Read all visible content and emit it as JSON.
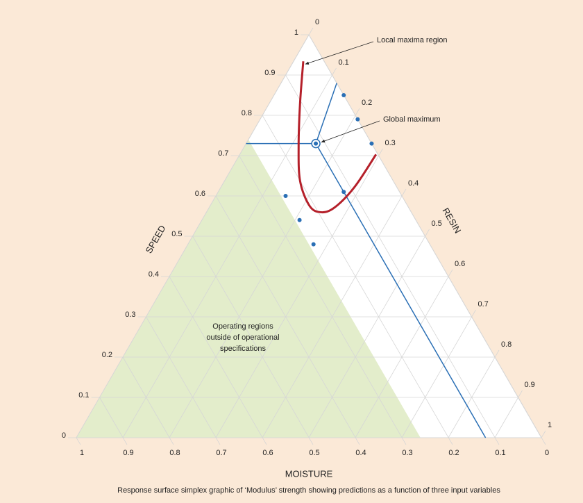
{
  "chart_data": {
    "type": "ternary",
    "speed_axis": {
      "label": "SPEED",
      "ticks": [
        0,
        0.1,
        0.2,
        0.3,
        0.4,
        0.5,
        0.6,
        0.7,
        0.8,
        0.9,
        1
      ]
    },
    "moisture_axis": {
      "label": "MOISTURE",
      "ticks": [
        1,
        0.9,
        0.8,
        0.7,
        0.6,
        0.5,
        0.4,
        0.3,
        0.2,
        0.1,
        0
      ]
    },
    "resin_axis": {
      "label": "RESIN",
      "ticks": [
        0,
        0.1,
        0.2,
        0.3,
        0.4,
        0.5,
        0.6,
        0.7,
        0.8,
        0.9,
        1
      ]
    },
    "grid": true,
    "shaded_region": {
      "label_lines": [
        "Operating regions",
        "outside of operational",
        "specifications"
      ],
      "moisture_min": 0.26,
      "color": "#e3edcb"
    },
    "points": {
      "color": "#2a6fb5",
      "speed": [
        0.85,
        0.79,
        0.73,
        0.61,
        0.6,
        0.54,
        0.48
      ],
      "moisture": [
        0,
        0,
        0,
        0.12,
        0.25,
        0.25,
        0.25
      ]
    },
    "global_maximum": {
      "label": "Global maximum",
      "speed": 0.73,
      "moisture": 0.12,
      "color": "#2a6fb5"
    },
    "local_maxima_region": {
      "label": "Local maxima region",
      "color": "#b5202a",
      "speed": [
        0.934,
        0.828,
        0.724,
        0.638,
        0.578,
        0.56,
        0.569,
        0.621,
        0.703
      ],
      "moisture": [
        0.045,
        0.105,
        0.16,
        0.2,
        0.211,
        0.198,
        0.163,
        0.092,
        0.004
      ]
    },
    "caption": "Response surface simplex graphic of ‘Modulus’ strength showing predictions as a function of three input variables"
  }
}
